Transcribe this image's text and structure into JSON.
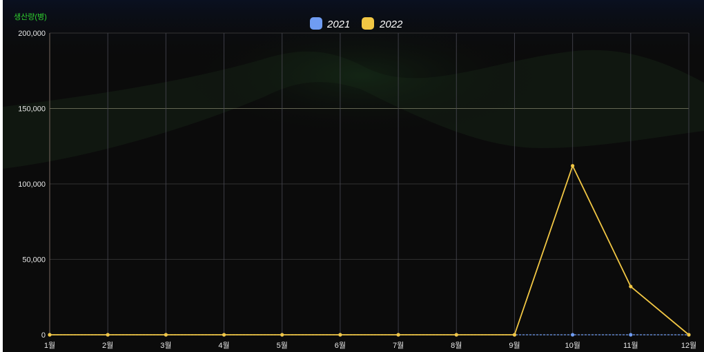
{
  "chart_data": {
    "type": "line",
    "ylabel": "생산량(병)",
    "categories": [
      "1월",
      "2월",
      "3월",
      "4월",
      "5월",
      "6월",
      "7월",
      "8월",
      "9월",
      "10월",
      "11월",
      "12월"
    ],
    "ylim": [
      0,
      200000
    ],
    "yticks": [
      "0",
      "50,000",
      "100,000",
      "150,000",
      "200,000"
    ],
    "ytick_values": [
      0,
      50000,
      100000,
      150000,
      200000
    ],
    "grid": true,
    "legend_position": "top-center",
    "series": [
      {
        "name": "2021",
        "color": "#6f9cf2",
        "values": [
          0,
          0,
          0,
          0,
          0,
          0,
          0,
          0,
          0,
          0,
          0,
          0
        ]
      },
      {
        "name": "2022",
        "color": "#f2c744",
        "values": [
          0,
          0,
          0,
          0,
          0,
          0,
          0,
          0,
          0,
          112000,
          32000,
          0
        ]
      }
    ]
  }
}
